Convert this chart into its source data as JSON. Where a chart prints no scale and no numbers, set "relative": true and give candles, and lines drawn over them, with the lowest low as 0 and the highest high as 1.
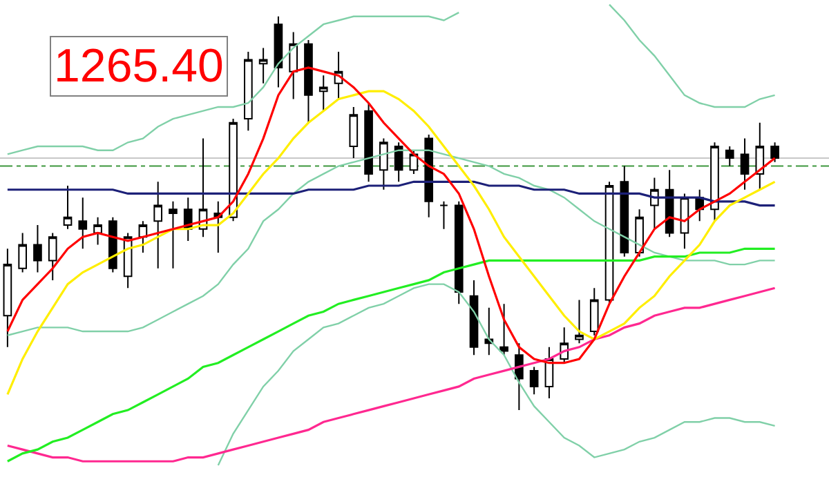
{
  "chart_data": {
    "type": "candlestick",
    "relative": true,
    "grid": false,
    "marker": "none",
    "categories": [
      null,
      null,
      null,
      null,
      null,
      null,
      null,
      null,
      null,
      null,
      null,
      null,
      null,
      null,
      null,
      null,
      null,
      null,
      null,
      null,
      null,
      null,
      null,
      null,
      null,
      null,
      null,
      null,
      null,
      null,
      null,
      null,
      null,
      null,
      null,
      null,
      null,
      null,
      null,
      null,
      null,
      null,
      null,
      null,
      null,
      null,
      null,
      null,
      null,
      null,
      null,
      null
    ],
    "ohlc": [
      [
        0.24,
        0.41,
        0.16,
        0.37
      ],
      [
        0.36,
        0.45,
        0.35,
        0.42
      ],
      [
        0.42,
        0.47,
        0.35,
        0.38
      ],
      [
        0.38,
        0.45,
        0.33,
        0.44
      ],
      [
        0.47,
        0.57,
        0.46,
        0.49
      ],
      [
        0.48,
        0.54,
        0.41,
        0.46
      ],
      [
        0.45,
        0.49,
        0.42,
        0.47
      ],
      [
        0.48,
        0.49,
        0.35,
        0.36
      ],
      [
        0.34,
        0.45,
        0.31,
        0.44
      ],
      [
        0.44,
        0.48,
        0.4,
        0.47
      ],
      [
        0.48,
        0.58,
        0.36,
        0.52
      ],
      [
        0.51,
        0.53,
        0.36,
        0.5
      ],
      [
        0.51,
        0.54,
        0.43,
        0.46
      ],
      [
        0.46,
        0.69,
        0.44,
        0.51
      ],
      [
        0.5,
        0.53,
        0.4,
        0.49
      ],
      [
        0.49,
        0.74,
        0.48,
        0.73
      ],
      [
        0.74,
        0.91,
        0.71,
        0.89
      ],
      [
        0.88,
        0.92,
        0.83,
        0.89
      ],
      [
        0.98,
        1.0,
        0.82,
        0.87
      ],
      [
        0.86,
        0.96,
        0.79,
        0.93
      ],
      [
        0.93,
        0.94,
        0.73,
        0.8
      ],
      [
        0.81,
        0.85,
        0.76,
        0.82
      ],
      [
        0.83,
        0.91,
        0.79,
        0.86
      ],
      [
        0.67,
        0.77,
        0.64,
        0.75
      ],
      [
        0.76,
        0.78,
        0.58,
        0.6
      ],
      [
        0.61,
        0.69,
        0.56,
        0.68
      ],
      [
        0.67,
        0.68,
        0.58,
        0.61
      ],
      [
        0.61,
        0.66,
        0.6,
        0.65
      ],
      [
        0.69,
        0.7,
        0.49,
        0.53
      ],
      [
        0.52,
        0.53,
        0.46,
        0.52
      ],
      [
        0.52,
        0.53,
        0.27,
        0.3
      ],
      [
        0.29,
        0.33,
        0.14,
        0.16
      ],
      [
        0.18,
        0.26,
        0.14,
        0.17
      ],
      [
        0.16,
        0.27,
        0.14,
        0.15
      ],
      [
        0.14,
        0.17,
        0.0,
        0.08
      ],
      [
        0.1,
        0.11,
        0.04,
        0.06
      ],
      [
        0.06,
        0.16,
        0.03,
        0.13
      ],
      [
        0.13,
        0.21,
        0.12,
        0.17
      ],
      [
        0.18,
        0.28,
        0.17,
        0.19
      ],
      [
        0.2,
        0.31,
        0.19,
        0.28
      ],
      [
        0.28,
        0.58,
        0.27,
        0.57
      ],
      [
        0.58,
        0.62,
        0.39,
        0.4
      ],
      [
        0.4,
        0.51,
        0.39,
        0.49
      ],
      [
        0.52,
        0.59,
        0.46,
        0.56
      ],
      [
        0.56,
        0.61,
        0.44,
        0.45
      ],
      [
        0.45,
        0.55,
        0.41,
        0.54
      ],
      [
        0.54,
        0.56,
        0.48,
        0.51
      ],
      [
        0.51,
        0.68,
        0.48,
        0.67
      ],
      [
        0.66,
        0.67,
        0.62,
        0.64
      ],
      [
        0.65,
        0.69,
        0.56,
        0.6
      ],
      [
        0.6,
        0.73,
        0.56,
        0.67
      ],
      [
        0.67,
        0.68,
        0.63,
        0.64
      ]
    ],
    "series": [
      {
        "type": "line",
        "color": "#80d0a8",
        "values": [
          0.65,
          0.66,
          0.67,
          0.67,
          0.67,
          0.67,
          0.66,
          0.66,
          0.68,
          0.69,
          0.72,
          0.74,
          0.75,
          0.76,
          0.77,
          0.77,
          0.78,
          0.82,
          0.88,
          0.92,
          0.95,
          0.98,
          0.99,
          1.0,
          1.0,
          1.0,
          1.0,
          1.0,
          1.0,
          0.99,
          1.01,
          null,
          null,
          null,
          null,
          null,
          null,
          null,
          null,
          null,
          1.03,
          0.99,
          0.94,
          0.9,
          0.85,
          0.8,
          0.78,
          0.77,
          0.77,
          0.77,
          0.79,
          0.8
        ]
      },
      {
        "type": "line",
        "color": "#80d0a8",
        "values": [
          0.19,
          0.2,
          0.21,
          0.21,
          0.21,
          0.2,
          0.2,
          0.2,
          0.2,
          0.21,
          0.23,
          0.25,
          0.27,
          0.29,
          0.32,
          0.37,
          0.41,
          0.48,
          0.51,
          0.55,
          0.58,
          0.6,
          0.62,
          0.63,
          0.64,
          0.65,
          0.66,
          0.66,
          0.66,
          0.65,
          0.64,
          0.63,
          0.62,
          0.6,
          0.59,
          0.57,
          0.56,
          0.54,
          0.51,
          0.48,
          0.46,
          0.44,
          0.42,
          0.4,
          0.39,
          0.38,
          0.38,
          0.38,
          0.37,
          0.37,
          0.38,
          0.38
        ]
      },
      {
        "type": "line",
        "color": "#80d0a8",
        "values": [
          null,
          null,
          null,
          null,
          null,
          null,
          null,
          null,
          null,
          null,
          null,
          null,
          null,
          null,
          -0.14,
          -0.06,
          0.0,
          0.06,
          0.1,
          0.15,
          0.18,
          0.21,
          0.22,
          0.24,
          0.26,
          0.27,
          0.29,
          0.31,
          0.32,
          0.32,
          0.3,
          0.25,
          0.18,
          0.14,
          0.07,
          0.01,
          -0.03,
          -0.07,
          -0.09,
          -0.12,
          -0.11,
          -0.1,
          -0.08,
          -0.07,
          -0.05,
          -0.03,
          -0.03,
          -0.02,
          -0.02,
          -0.03,
          -0.03,
          -0.04
        ]
      },
      {
        "type": "line",
        "color": "#ff2890",
        "values": [
          -0.09,
          -0.1,
          -0.11,
          -0.12,
          -0.12,
          -0.13,
          -0.13,
          -0.13,
          -0.13,
          -0.13,
          -0.13,
          -0.13,
          -0.12,
          -0.12,
          -0.11,
          -0.1,
          -0.09,
          -0.08,
          -0.07,
          -0.06,
          -0.05,
          -0.03,
          -0.02,
          -0.01,
          0.0,
          0.01,
          0.02,
          0.03,
          0.04,
          0.05,
          0.06,
          0.08,
          0.09,
          0.1,
          0.11,
          0.12,
          0.13,
          0.15,
          0.16,
          0.18,
          0.19,
          0.21,
          0.22,
          0.24,
          0.25,
          0.26,
          0.26,
          0.27,
          0.28,
          0.29,
          0.3,
          0.31
        ]
      },
      {
        "type": "line",
        "color": "#22ee22",
        "values": [
          -0.13,
          -0.11,
          -0.1,
          -0.08,
          -0.07,
          -0.05,
          -0.03,
          -0.01,
          0.0,
          0.02,
          0.04,
          0.06,
          0.08,
          0.11,
          0.12,
          0.14,
          0.16,
          0.18,
          0.2,
          0.22,
          0.24,
          0.25,
          0.27,
          0.28,
          0.29,
          0.3,
          0.31,
          0.32,
          0.33,
          0.35,
          0.36,
          0.37,
          0.38,
          0.38,
          0.38,
          0.38,
          0.38,
          0.38,
          0.38,
          0.38,
          0.38,
          0.38,
          0.38,
          0.39,
          0.39,
          0.39,
          0.4,
          0.4,
          0.4,
          0.41,
          0.41,
          0.41
        ]
      },
      {
        "type": "line",
        "color": "#1c2078",
        "values": [
          0.56,
          0.56,
          0.56,
          0.56,
          0.56,
          0.56,
          0.56,
          0.56,
          0.55,
          0.55,
          0.55,
          0.55,
          0.55,
          0.55,
          0.55,
          0.55,
          0.55,
          0.55,
          0.55,
          0.55,
          0.56,
          0.56,
          0.56,
          0.56,
          0.57,
          0.57,
          0.57,
          0.58,
          0.58,
          0.58,
          0.58,
          0.58,
          0.57,
          0.57,
          0.57,
          0.56,
          0.56,
          0.56,
          0.55,
          0.55,
          0.55,
          0.55,
          0.55,
          0.54,
          0.54,
          0.54,
          0.54,
          0.53,
          0.53,
          0.53,
          0.52,
          0.52
        ]
      },
      {
        "type": "line",
        "color": "#ffee00",
        "values": [
          0.04,
          0.13,
          0.2,
          0.26,
          0.32,
          0.35,
          0.37,
          0.39,
          0.41,
          0.42,
          0.44,
          0.46,
          0.46,
          0.47,
          0.47,
          0.5,
          0.55,
          0.6,
          0.64,
          0.69,
          0.73,
          0.76,
          0.79,
          0.8,
          0.81,
          0.81,
          0.79,
          0.76,
          0.72,
          0.67,
          0.62,
          0.57,
          0.51,
          0.44,
          0.39,
          0.34,
          0.29,
          0.24,
          0.2,
          0.18,
          0.2,
          0.22,
          0.26,
          0.29,
          0.34,
          0.38,
          0.42,
          0.48,
          0.52,
          0.54,
          0.56,
          0.58
        ]
      },
      {
        "type": "line",
        "color": "#ff0000",
        "values": [
          0.2,
          0.28,
          0.32,
          0.36,
          0.41,
          0.44,
          0.45,
          0.44,
          0.43,
          0.44,
          0.45,
          0.46,
          0.47,
          0.48,
          0.49,
          0.53,
          0.6,
          0.69,
          0.8,
          0.86,
          0.87,
          0.86,
          0.85,
          0.82,
          0.78,
          0.73,
          0.69,
          0.65,
          0.62,
          0.6,
          0.55,
          0.46,
          0.34,
          0.23,
          0.16,
          0.13,
          0.12,
          0.12,
          0.13,
          0.18,
          0.27,
          0.34,
          0.4,
          0.46,
          0.49,
          0.48,
          0.51,
          0.53,
          0.55,
          0.58,
          0.61,
          0.64
        ]
      }
    ],
    "ref_lines": [
      {
        "axis": "y",
        "value": 0.64,
        "color": "#c8c8c8",
        "line_style": "solid"
      },
      {
        "axis": "y",
        "value": 0.62,
        "color": "#3c963c",
        "line_style": "dashed"
      }
    ],
    "annotations": [
      "1265.40"
    ]
  }
}
